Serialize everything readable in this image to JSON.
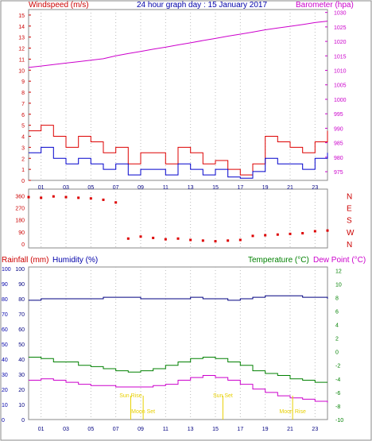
{
  "chart_data": [
    {
      "type": "line",
      "panel": "wind-baro",
      "title": "24 hour graph day : 15 January 2017",
      "left_label": "Windspeed (m/s)",
      "right_label": "Barometer (hpa)",
      "x_ticks": [
        "01",
        "03",
        "05",
        "07",
        "09",
        "11",
        "13",
        "15",
        "17",
        "19",
        "21",
        "23"
      ],
      "left_ylim": [
        0,
        15.5
      ],
      "left_ticks": [
        0,
        1,
        2,
        3,
        4,
        5,
        6,
        7,
        8,
        9,
        10,
        11,
        12,
        13,
        14,
        15
      ],
      "right_ylim": [
        972,
        1031
      ],
      "right_ticks": [
        975,
        980,
        985,
        990,
        995,
        1000,
        1005,
        1010,
        1015,
        1020,
        1025,
        1030
      ],
      "x": [
        0,
        1,
        2,
        3,
        4,
        5,
        6,
        7,
        8,
        9,
        10,
        11,
        12,
        13,
        14,
        15,
        16,
        17,
        18,
        19,
        20,
        21,
        22,
        23,
        24
      ],
      "series": [
        {
          "name": "Barometer",
          "axis": "right",
          "color": "#cc00cc",
          "values": [
            1011,
            1011.5,
            1012,
            1012.5,
            1013,
            1013.5,
            1014,
            1015,
            1015.8,
            1016.5,
            1017.3,
            1018,
            1018.8,
            1019.5,
            1020.3,
            1021,
            1021.8,
            1022.5,
            1023.2,
            1024,
            1024.6,
            1025.2,
            1025.8,
            1026.5,
            1027
          ]
        },
        {
          "name": "Gust",
          "axis": "left",
          "color": "#dd0000",
          "values": [
            4.5,
            5,
            4,
            3,
            4,
            3.5,
            2.5,
            3,
            1.5,
            2.5,
            2.5,
            1.5,
            3,
            2.5,
            1.5,
            1.8,
            1,
            0.5,
            1.5,
            4,
            3.5,
            3,
            2.5,
            3.5,
            4.5
          ]
        },
        {
          "name": "Average",
          "axis": "left",
          "color": "#0000cc",
          "values": [
            2.5,
            3,
            2,
            1.5,
            2,
            1.5,
            1,
            1.5,
            0.5,
            1,
            1,
            0.5,
            1.5,
            1,
            0.5,
            1,
            0.3,
            0.2,
            0.8,
            2,
            1.5,
            1.5,
            1,
            2,
            2.5
          ]
        }
      ]
    },
    {
      "type": "scatter",
      "panel": "wind-direction",
      "left_ticks": [
        0,
        90,
        180,
        270,
        360
      ],
      "right_ticks": [
        "N",
        "W",
        "S",
        "E",
        "N"
      ],
      "ylim": [
        0,
        380
      ],
      "x": [
        0,
        1,
        2,
        3,
        4,
        5,
        6,
        7,
        8,
        9,
        10,
        11,
        12,
        13,
        14,
        15,
        16,
        17,
        18,
        19,
        20,
        21,
        22,
        23,
        24
      ],
      "values": [
        350,
        345,
        355,
        350,
        345,
        340,
        330,
        310,
        40,
        55,
        45,
        35,
        40,
        30,
        25,
        20,
        25,
        30,
        60,
        65,
        70,
        75,
        80,
        95,
        100
      ]
    },
    {
      "type": "line",
      "panel": "rain-hum-temp",
      "labels": [
        "Rainfall (mm)",
        "Humidity (%)",
        "Temperature (°C)",
        "Dew Point (°C)"
      ],
      "left_rain_ticks": [
        0,
        10,
        20,
        30,
        40,
        50,
        60,
        70,
        80,
        90,
        100
      ],
      "left_hum_ticks": [
        0,
        10,
        20,
        30,
        40,
        50,
        60,
        70,
        80,
        90,
        100
      ],
      "right_temp_ticks": [
        -10,
        -8,
        -6,
        -4,
        -2,
        0,
        2,
        4,
        6,
        8,
        10,
        12
      ],
      "temp_ylim": [
        -10,
        12.5
      ],
      "x": [
        0,
        1,
        2,
        3,
        4,
        5,
        6,
        7,
        8,
        9,
        10,
        11,
        12,
        13,
        14,
        15,
        16,
        17,
        18,
        19,
        20,
        21,
        22,
        23,
        24
      ],
      "series": [
        {
          "name": "Humidity",
          "axis": "hum",
          "color": "#000080",
          "values": [
            79,
            80,
            80,
            80,
            80,
            80,
            81,
            81,
            81,
            80,
            80,
            80,
            80,
            81,
            80,
            80,
            79,
            80,
            81,
            82,
            82,
            82,
            81,
            81,
            80
          ]
        },
        {
          "name": "Temperature",
          "axis": "temp",
          "color": "#008000",
          "values": [
            -0.8,
            -1,
            -1.5,
            -1.5,
            -2,
            -2.2,
            -2.5,
            -2.8,
            -3,
            -2.8,
            -2.5,
            -2,
            -1.5,
            -1,
            -0.8,
            -1,
            -1.5,
            -2,
            -2.8,
            -3.2,
            -3.5,
            -4,
            -4.2,
            -4.5,
            -4.5
          ]
        },
        {
          "name": "Dew Point",
          "axis": "temp",
          "color": "#cc00cc",
          "values": [
            -4.2,
            -4,
            -4.2,
            -4.5,
            -4.8,
            -5,
            -5,
            -5.2,
            -5.2,
            -5.2,
            -5,
            -4.8,
            -4.2,
            -3.8,
            -3.5,
            -3.8,
            -4.2,
            -4.8,
            -5.5,
            -6,
            -6.5,
            -6.8,
            -7,
            -7.3,
            -7.5
          ]
        }
      ],
      "events": [
        {
          "label": "Sun Rise",
          "x": 8.2,
          "row": 0
        },
        {
          "label": "Moon Set",
          "x": 9.2,
          "row": 1
        },
        {
          "label": "Sun Set",
          "x": 15.6,
          "row": 0
        },
        {
          "label": "Moon Rise",
          "x": 21.2,
          "row": 1
        }
      ],
      "x_ticks": [
        "01",
        "03",
        "05",
        "07",
        "09",
        "11",
        "13",
        "15",
        "17",
        "19",
        "21",
        "23"
      ],
      "bottom_x_labels": [
        "01",
        "03",
        "05",
        "07",
        "09",
        "11",
        "13",
        "15",
        "17",
        "19",
        "Moon Rise",
        "21",
        "23"
      ]
    }
  ]
}
